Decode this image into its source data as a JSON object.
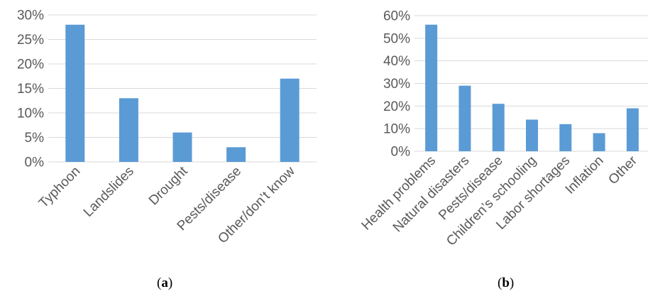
{
  "colors": {
    "bar": "#5b9bd5",
    "grid": "#d9d9d9",
    "axis_text": "#595959"
  },
  "chart_data": [
    {
      "type": "bar",
      "panel": "a",
      "caption": "a",
      "categories": [
        "Typhoon",
        "Landslides",
        "Drought",
        "Pests/disease",
        "Other/don’t know"
      ],
      "values": [
        28,
        13,
        6,
        3,
        17
      ],
      "y_ticks": [
        "0%",
        "5%",
        "10%",
        "15%",
        "20%",
        "25%",
        "30%"
      ],
      "ylim": [
        0,
        30
      ],
      "y_step": 5,
      "grid": true,
      "legend": "none",
      "title": "",
      "xlabel": "",
      "ylabel": ""
    },
    {
      "type": "bar",
      "panel": "b",
      "caption": "b",
      "categories": [
        "Health problems",
        "Natural disasters",
        "Pests/disease",
        "Children’s schooling",
        "Labor shortages",
        "Inflation",
        "Other"
      ],
      "values": [
        56,
        29,
        21,
        14,
        12,
        8,
        19
      ],
      "y_ticks": [
        "0%",
        "10%",
        "20%",
        "30%",
        "40%",
        "50%",
        "60%"
      ],
      "ylim": [
        0,
        60
      ],
      "y_step": 10,
      "grid": true,
      "legend": "none",
      "title": "",
      "xlabel": "",
      "ylabel": ""
    }
  ]
}
